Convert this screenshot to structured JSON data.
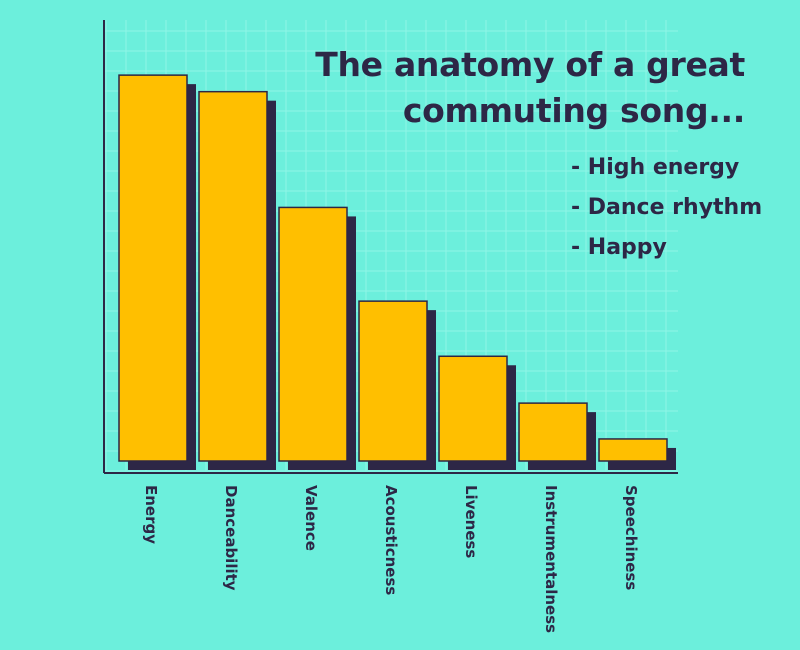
{
  "chart_data": {
    "type": "bar",
    "categories": [
      "Energy",
      "Danceability",
      "Valence",
      "Acousticness",
      "Liveness",
      "Instrumentalness",
      "Speechiness"
    ],
    "values": [
      0.7,
      0.67,
      0.46,
      0.29,
      0.19,
      0.105,
      0.04
    ],
    "ylim": [
      0,
      0.8
    ],
    "grid": true,
    "legend": "none",
    "colors": {
      "bar": "#ffbf00",
      "shadow": "#2d2746",
      "outline": "#2d2746",
      "background": "#6cefdc",
      "grid": "#8ff5e6"
    }
  },
  "annotation": {
    "title_line1": "The anatomy of a great",
    "title_line2": "commuting song...",
    "bullets": [
      "- High energy",
      "- Dance rhythm",
      "- Happy"
    ]
  }
}
